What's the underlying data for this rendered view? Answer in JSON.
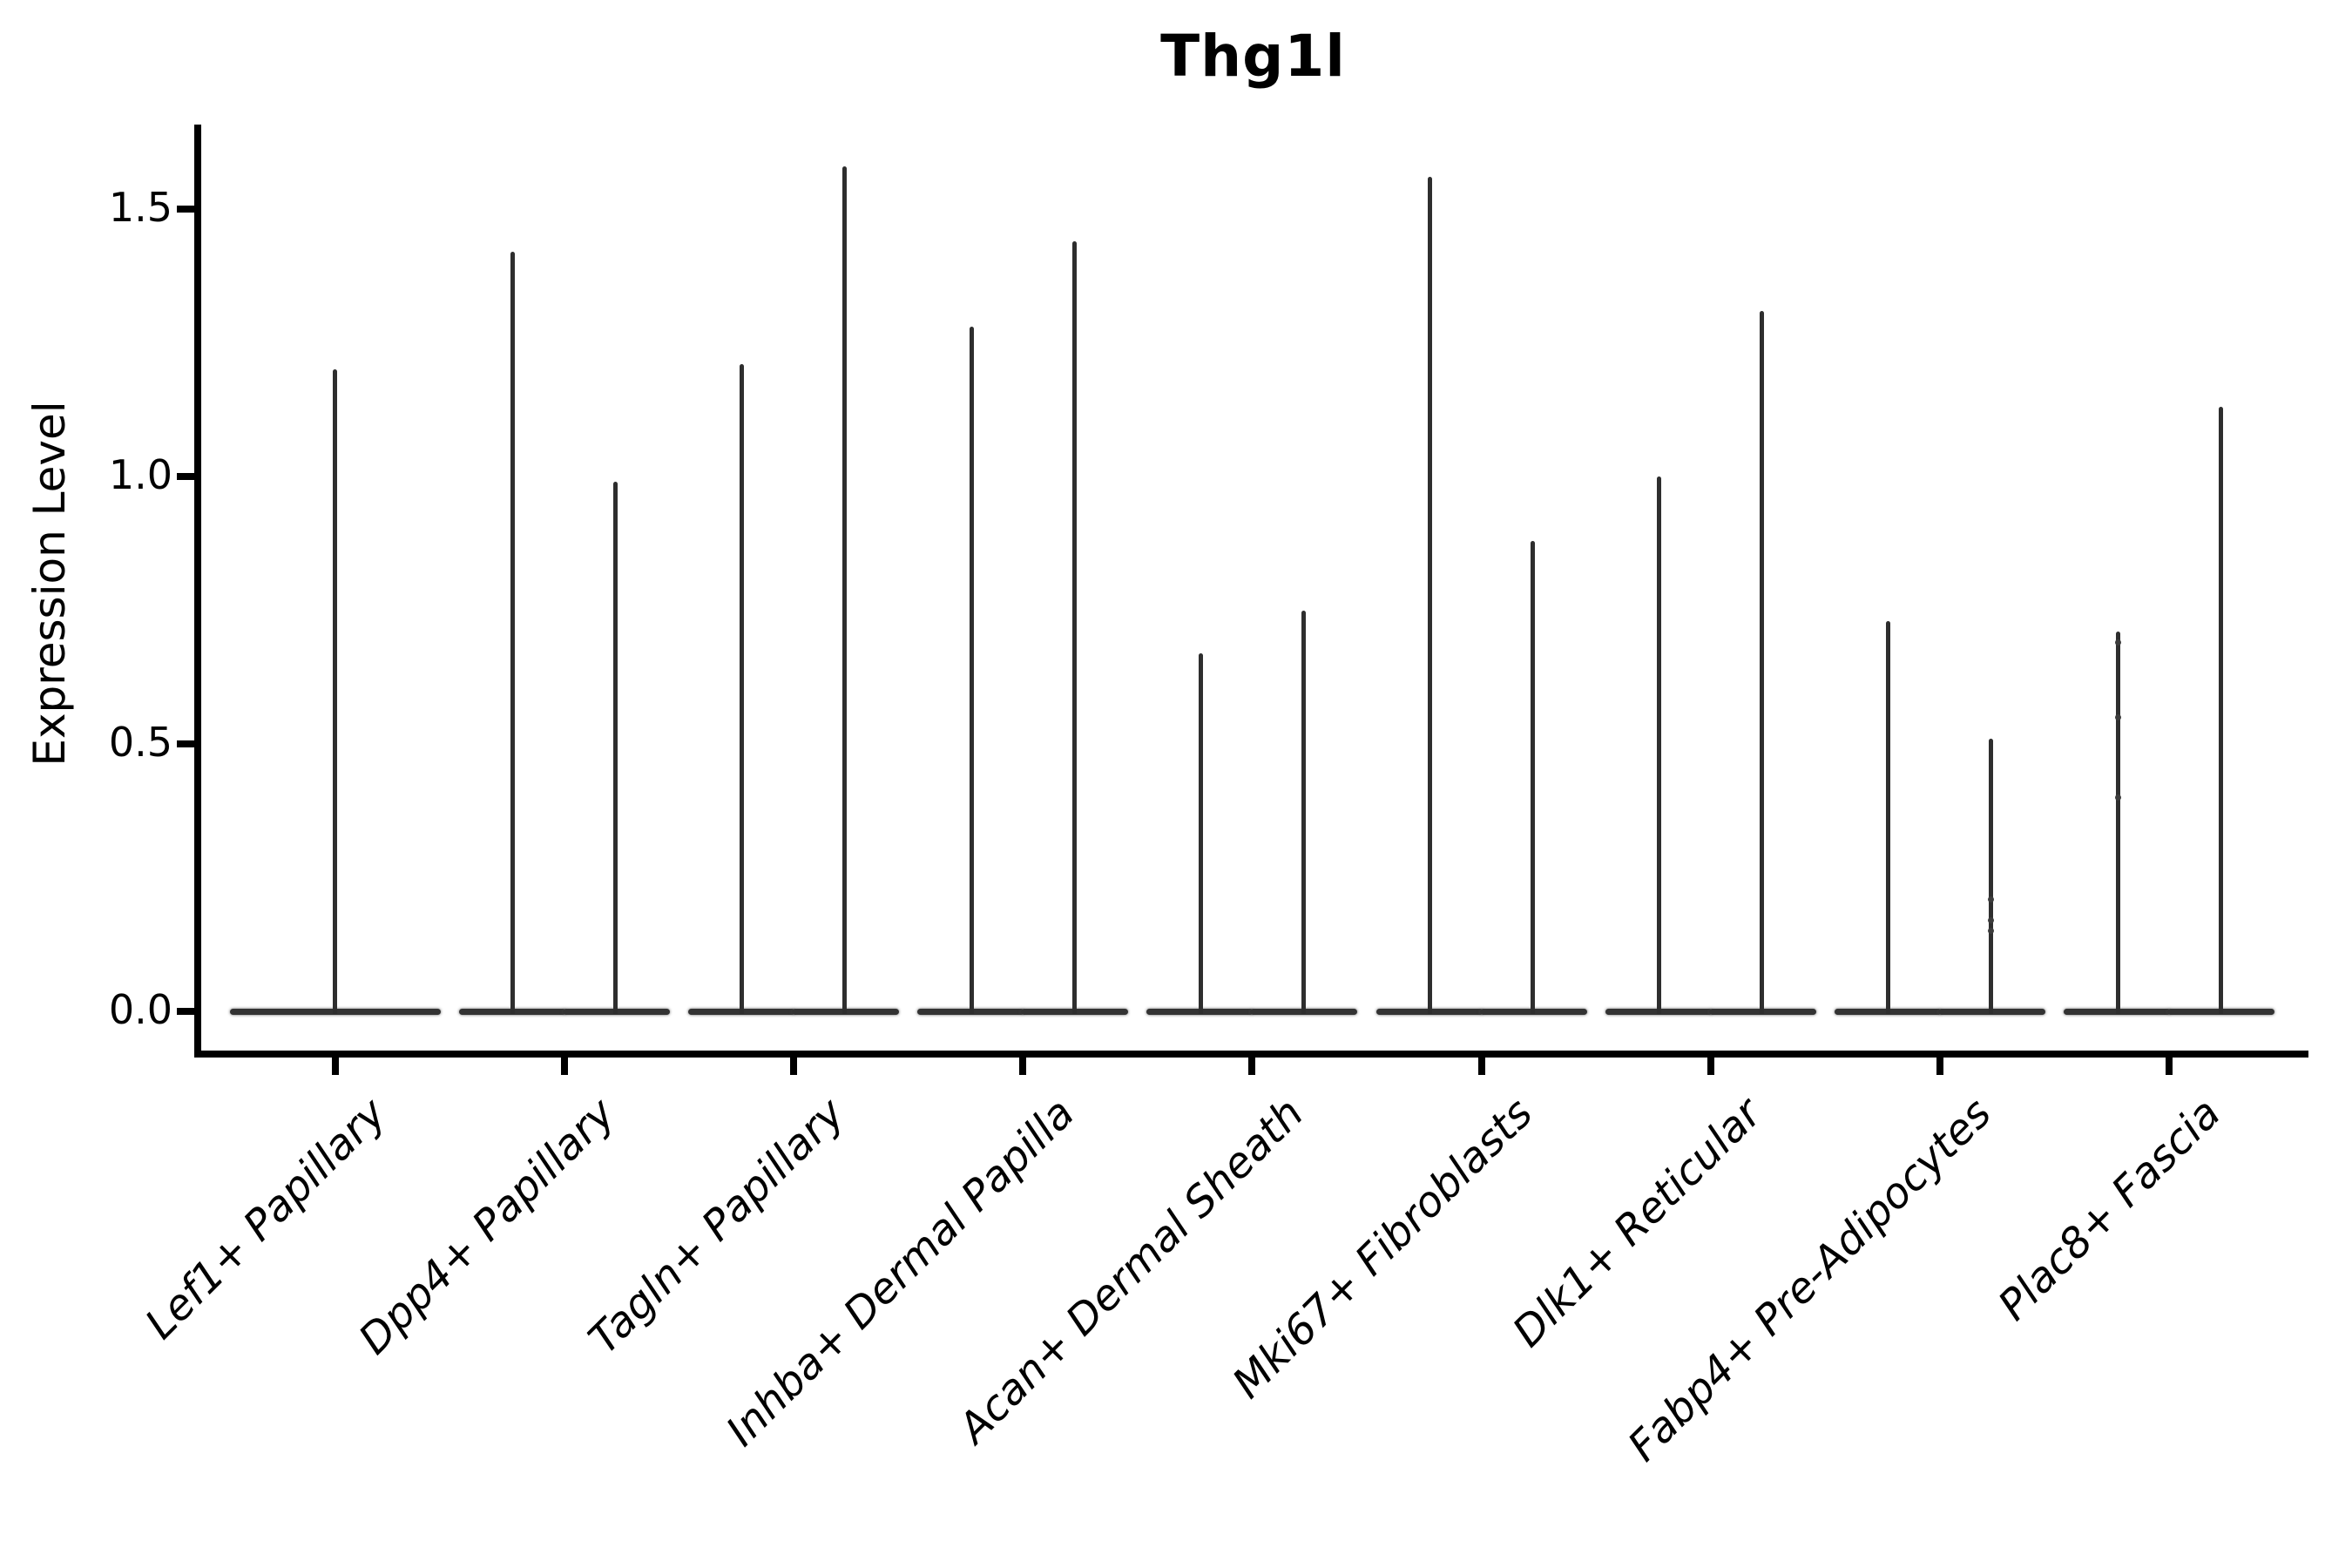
{
  "figure": {
    "title": "Thg1l",
    "y_axis": {
      "label": "Expression Level",
      "tick_labels": [
        "0.0",
        "0.5",
        "1.0",
        "1.5"
      ]
    }
  },
  "chart_data": {
    "type": "violin",
    "title": "Thg1l",
    "xlabel": "",
    "ylabel": "Expression Level",
    "ylim": [
      -0.08,
      1.66
    ],
    "yticks": [
      0.0,
      0.5,
      1.0,
      1.5
    ],
    "ytick_labels": [
      "0.0",
      "0.5",
      "1.0",
      "1.5"
    ],
    "grid": false,
    "legend": "none",
    "categories": [
      "Lef1+ Papillary",
      "Dpp4+ Papillary",
      "Tagln+ Papillary",
      "Inhba+ Dermal Papilla",
      "Acan+ Dermal Sheath",
      "Mki67+ Fibroblasts",
      "Dlk1+ Reticular",
      "Fabp4+ Pre-Adipocytes",
      "Plac8+ Fascia"
    ],
    "distribution_note": "Single-cell expression violins: each distribution is almost entirely at 0, drawn as a wide flat base at y=0 with a thin vertical spike reaching the maximum expression value. Categories 2-9 contain two side-by-side violins; category 1 has one full-width violin.",
    "violins": [
      {
        "category": "Lef1+ Papillary",
        "spike_max": [
          1.2
        ]
      },
      {
        "category": "Dpp4+ Papillary",
        "spike_max": [
          1.42,
          0.99
        ]
      },
      {
        "category": "Tagln+ Papillary",
        "spike_max": [
          1.21,
          1.58
        ]
      },
      {
        "category": "Inhba+ Dermal Papilla",
        "spike_max": [
          1.28,
          1.44
        ]
      },
      {
        "category": "Acan+ Dermal Sheath",
        "spike_max": [
          0.67,
          0.75
        ]
      },
      {
        "category": "Mki67+ Fibroblasts",
        "spike_max": [
          1.56,
          0.88
        ]
      },
      {
        "category": "Dlk1+ Reticular",
        "spike_max": [
          1.0,
          1.31
        ]
      },
      {
        "category": "Fabp4+ Pre-Adipocytes",
        "spike_max": [
          0.73,
          0.51
        ]
      },
      {
        "category": "Plac8+ Fascia",
        "spike_max": [
          0.71,
          1.13
        ]
      }
    ],
    "jitter_points": [
      {
        "category_index": 7,
        "violin": 1,
        "values": [
          0.15,
          0.17,
          0.21
        ]
      },
      {
        "category_index": 8,
        "violin": 0,
        "values": [
          0.4,
          0.55,
          0.69
        ]
      }
    ]
  }
}
